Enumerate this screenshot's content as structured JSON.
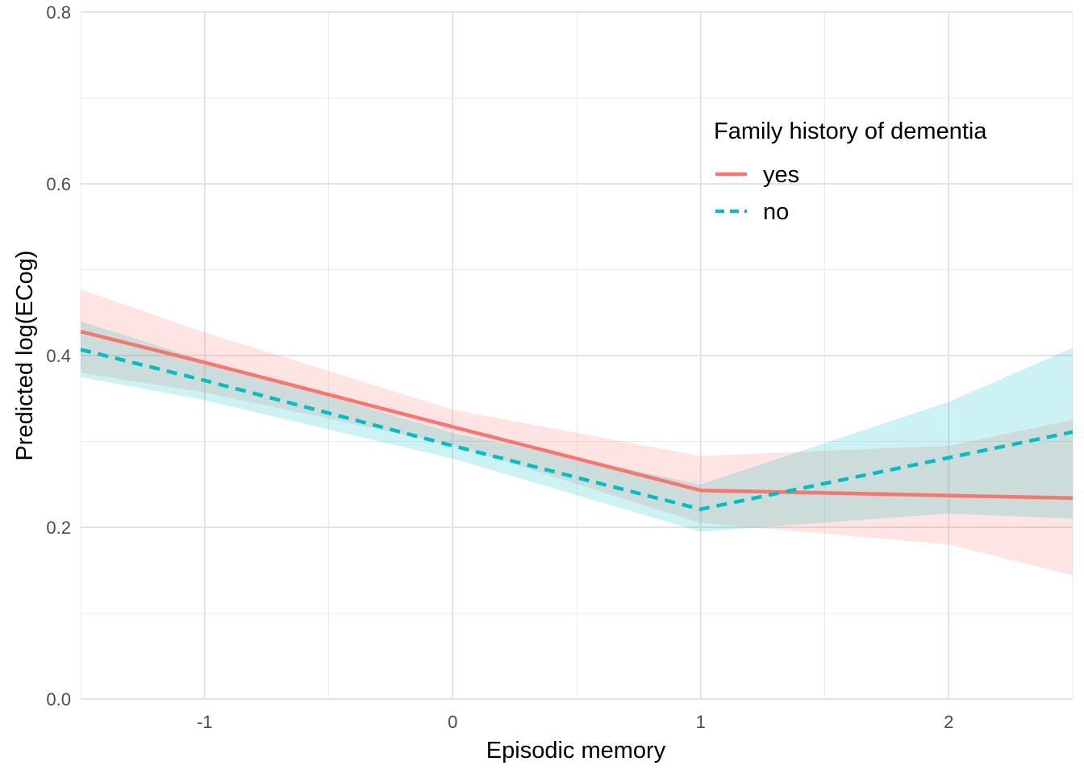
{
  "chart_data": {
    "type": "line",
    "xlabel": "Episodic memory",
    "ylabel": "Predicted log(ECog)",
    "xlim": [
      -1.5,
      2.5
    ],
    "ylim": [
      0.0,
      0.8
    ],
    "x_ticks": [
      -1,
      0,
      1,
      2
    ],
    "x_tick_labels": [
      "-1",
      "0",
      "1",
      "2"
    ],
    "y_ticks": [
      0.0,
      0.2,
      0.4,
      0.6,
      0.8
    ],
    "y_tick_labels": [
      "0.0",
      "0.2",
      "0.4",
      "0.6",
      "0.8"
    ],
    "grid": true,
    "legend": {
      "title": "Family history of dementia",
      "position": "top-right (inside plot)"
    },
    "series": [
      {
        "name": "yes",
        "color": "#F8766D",
        "line_style": "solid",
        "x": [
          -1.5,
          -1,
          0,
          1,
          2,
          2.5
        ],
        "values": [
          0.428,
          0.392,
          0.317,
          0.243,
          0.237,
          0.234
        ],
        "lower": [
          0.38,
          0.357,
          0.296,
          0.205,
          0.18,
          0.144
        ],
        "upper": [
          0.477,
          0.427,
          0.337,
          0.283,
          0.295,
          0.325
        ]
      },
      {
        "name": "no",
        "color": "#00BFC4",
        "line_style": "dashed",
        "x": [
          -1.5,
          -1,
          0,
          1,
          2,
          2.5
        ],
        "values": [
          0.407,
          0.371,
          0.295,
          0.221,
          0.281,
          0.311
        ],
        "lower": [
          0.375,
          0.348,
          0.28,
          0.195,
          0.216,
          0.21
        ],
        "upper": [
          0.44,
          0.394,
          0.31,
          0.25,
          0.346,
          0.409
        ]
      }
    ]
  }
}
